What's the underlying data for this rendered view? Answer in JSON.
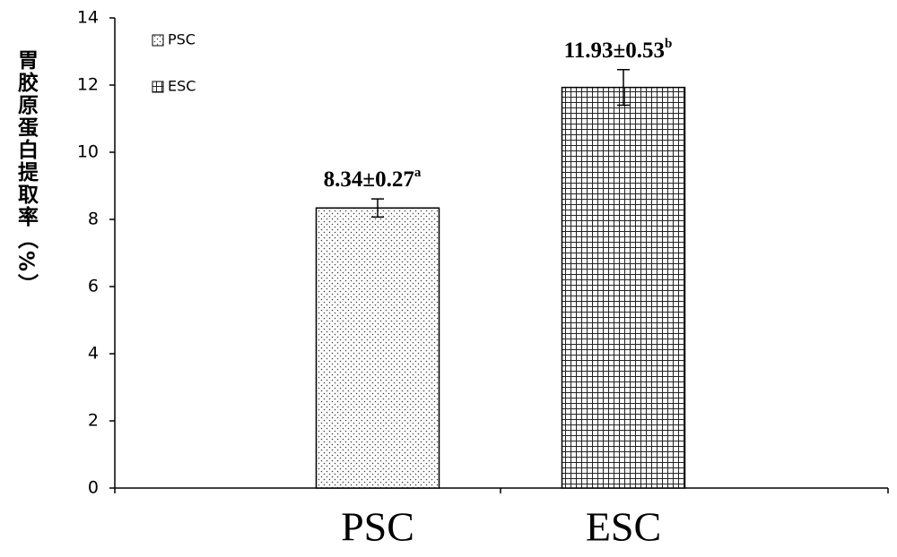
{
  "chart_data": {
    "type": "bar",
    "y_label": "胃胶原蛋白提取率（%）",
    "categories": [
      "PSC",
      "ESC"
    ],
    "series": [
      {
        "name": "PSC",
        "pattern": "dots",
        "values": [
          8.34,
          null
        ],
        "errors": [
          0.27,
          null
        ],
        "value_labels": [
          "8.34±0.27",
          null
        ],
        "significance": [
          "a",
          null
        ]
      },
      {
        "name": "ESC",
        "pattern": "grid",
        "values": [
          null,
          11.93
        ],
        "errors": [
          null,
          0.53
        ],
        "value_labels": [
          null,
          "11.93±0.53"
        ],
        "significance": [
          null,
          "b"
        ]
      }
    ],
    "ylim": [
      0,
      14
    ],
    "yticks": [
      0,
      2,
      4,
      6,
      8,
      10,
      12,
      14
    ],
    "legend": "top-left"
  }
}
